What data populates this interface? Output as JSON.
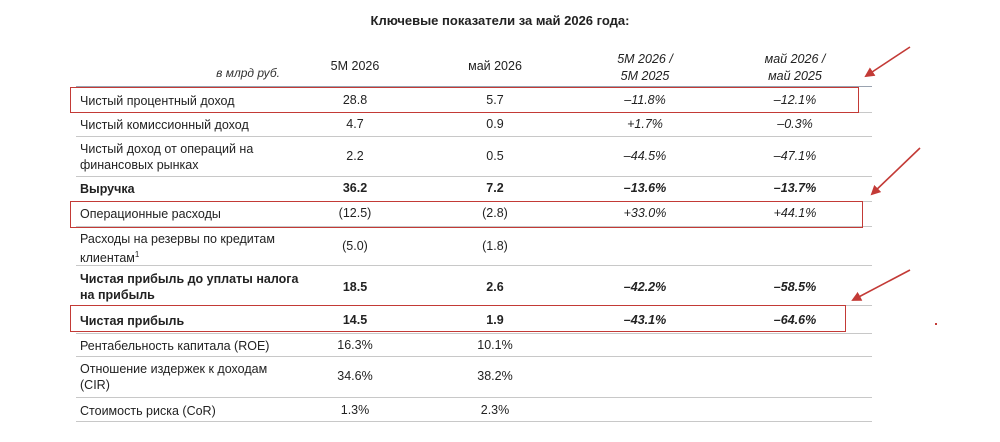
{
  "title": "Ключевые показатели за май 2026 года:",
  "header": {
    "unit": "в млрд руб.",
    "col1": "5М 2026",
    "col2": "май 2026",
    "col3_line1": "5М 2026 /",
    "col3_line2": "5М 2025",
    "col4_line1": "май 2026 /",
    "col4_line2": "май 2025"
  },
  "rows": [
    {
      "label": "Чистый процентный доход",
      "c1": "28.8",
      "c2": "5.7",
      "c3": "–11.8%",
      "c4": "–12.1%"
    },
    {
      "label": "Чистый комиссионный доход",
      "c1": "4.7",
      "c2": "0.9",
      "c3": "+1.7%",
      "c4": "–0.3%"
    },
    {
      "label_line1": "Чистый доход от операций на",
      "label_line2": "финансовых рынках",
      "c1": "2.2",
      "c2": "0.5",
      "c3": "–44.5%",
      "c4": "–47.1%"
    },
    {
      "label": "Выручка",
      "c1": "36.2",
      "c2": "7.2",
      "c3": "–13.6%",
      "c4": "–13.7%"
    },
    {
      "label": "Операционные расходы",
      "c1": "(12.5)",
      "c2": "(2.8)",
      "c3": "+33.0%",
      "c4": "+44.1%"
    },
    {
      "label_line1": "Расходы на резервы по кредитам",
      "label_line2": "клиентам",
      "footnote": "1",
      "c1": "(5.0)",
      "c2": "(1.8)"
    },
    {
      "label_line1": "Чистая прибыль до уплаты налога",
      "label_line2": "на прибыль",
      "c1": "18.5",
      "c2": "2.6",
      "c3": "–42.2%",
      "c4": "–58.5%"
    },
    {
      "label": "Чистая прибыль",
      "c1": "14.5",
      "c2": "1.9",
      "c3": "–43.1%",
      "c4": "–64.6%"
    },
    {
      "label": "Рентабельность капитала (ROE)",
      "c1": "16.3%",
      "c2": "10.1%"
    },
    {
      "label_line1": "Отношение издержек к доходам",
      "label_line2": "(CIR)",
      "c1": "34.6%",
      "c2": "38.2%"
    },
    {
      "label": "Стоимость риска (CoR)",
      "c1": "1.3%",
      "c2": "2.3%"
    }
  ],
  "colors": {
    "highlight": "#c33a36"
  }
}
